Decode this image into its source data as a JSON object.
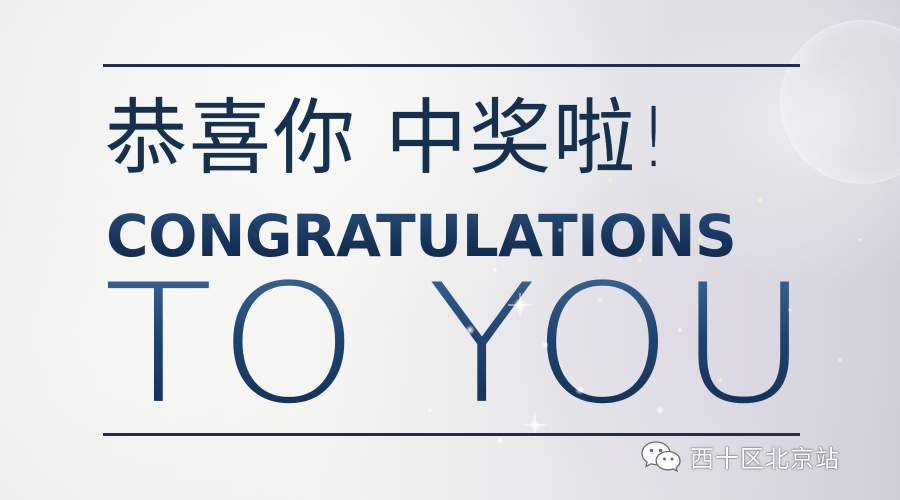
{
  "headline": {
    "chinese": "恭喜你 中奖啦!",
    "english_line1": "CONGRATULATIONS",
    "english_line2": "TO YOU"
  },
  "watermark": {
    "icon": "wechat-icon",
    "text": "西十区北京站"
  },
  "colors": {
    "text_navy": "#16314f",
    "rule": "#1f2f4f",
    "watermark_text": "#ffffff"
  }
}
